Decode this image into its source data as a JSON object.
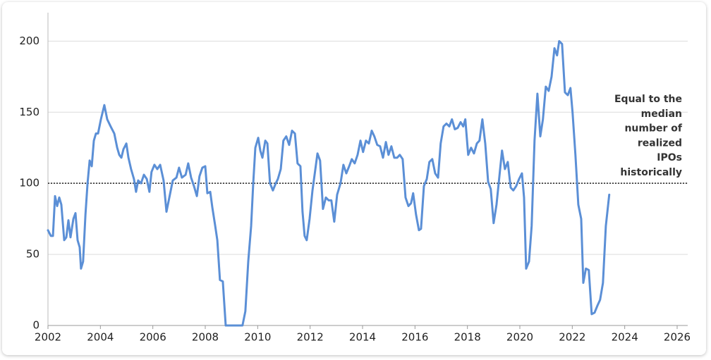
{
  "chart_data": {
    "type": "line",
    "xlim": [
      2002,
      2026
    ],
    "xticks": [
      2002,
      2004,
      2006,
      2008,
      2010,
      2012,
      2014,
      2016,
      2018,
      2020,
      2022,
      2024,
      2026
    ],
    "ylim": [
      0,
      220
    ],
    "yticks": [
      0,
      50,
      100,
      150,
      200
    ],
    "grid": true,
    "reference_line": 100,
    "annotation": [
      "Equal to the",
      "median",
      "number of",
      "realized",
      "IPOs",
      "historically"
    ],
    "series": [
      {
        "color": "#5b8fd6",
        "x": [
          2002.0,
          2002.11,
          2002.19,
          2002.27,
          2002.35,
          2002.43,
          2002.51,
          2002.62,
          2002.7,
          2002.78,
          2002.86,
          2002.97,
          2003.05,
          2003.13,
          2003.21,
          2003.26,
          2003.34,
          2003.43,
          2003.51,
          2003.59,
          2003.67,
          2003.75,
          2003.83,
          2003.91,
          2004.02,
          2004.15,
          2004.26,
          2004.39,
          2004.53,
          2004.64,
          2004.72,
          2004.8,
          2004.88,
          2004.99,
          2005.07,
          2005.17,
          2005.28,
          2005.36,
          2005.44,
          2005.55,
          2005.66,
          2005.77,
          2005.87,
          2005.95,
          2006.06,
          2006.17,
          2006.28,
          2006.41,
          2006.52,
          2006.63,
          2006.76,
          2006.9,
          2007.0,
          2007.11,
          2007.25,
          2007.35,
          2007.46,
          2007.57,
          2007.68,
          2007.78,
          2007.89,
          2008.0,
          2008.08,
          2008.19,
          2008.27,
          2008.38,
          2008.46,
          2008.56,
          2008.67,
          2008.78,
          2008.89,
          2009.42,
          2009.53,
          2009.64,
          2009.75,
          2009.83,
          2009.91,
          2010.02,
          2010.1,
          2010.18,
          2010.29,
          2010.37,
          2010.47,
          2010.58,
          2010.69,
          2010.77,
          2010.88,
          2010.98,
          2011.09,
          2011.2,
          2011.31,
          2011.42,
          2011.52,
          2011.63,
          2011.71,
          2011.79,
          2011.87,
          2011.98,
          2012.09,
          2012.2,
          2012.28,
          2012.38,
          2012.49,
          2012.6,
          2012.71,
          2012.81,
          2012.92,
          2013.03,
          2013.16,
          2013.27,
          2013.38,
          2013.49,
          2013.59,
          2013.7,
          2013.81,
          2013.92,
          2014.02,
          2014.13,
          2014.24,
          2014.35,
          2014.45,
          2014.56,
          2014.67,
          2014.78,
          2014.89,
          2014.99,
          2015.1,
          2015.21,
          2015.32,
          2015.42,
          2015.53,
          2015.64,
          2015.75,
          2015.85,
          2015.93,
          2016.04,
          2016.15,
          2016.23,
          2016.34,
          2016.45,
          2016.55,
          2016.66,
          2016.77,
          2016.88,
          2016.98,
          2017.09,
          2017.2,
          2017.31,
          2017.41,
          2017.52,
          2017.63,
          2017.74,
          2017.84,
          2017.92,
          2018.03,
          2018.14,
          2018.25,
          2018.36,
          2018.46,
          2018.57,
          2018.68,
          2018.79,
          2018.89,
          2019.0,
          2019.11,
          2019.22,
          2019.32,
          2019.43,
          2019.54,
          2019.65,
          2019.75,
          2019.86,
          2019.97,
          2020.08,
          2020.16,
          2020.24,
          2020.35,
          2020.45,
          2020.56,
          2020.67,
          2020.78,
          2020.88,
          2020.99,
          2021.1,
          2021.21,
          2021.32,
          2021.42,
          2021.5,
          2021.61,
          2021.72,
          2021.83,
          2021.93,
          2022.01,
          2022.12,
          2022.23,
          2022.34,
          2022.42,
          2022.52,
          2022.63,
          2022.74,
          2022.85,
          2022.96,
          2023.06,
          2023.17,
          2023.28,
          2023.41
        ],
        "values": [
          67,
          63,
          63,
          91,
          84,
          90,
          85,
          60,
          62,
          74,
          62,
          75,
          79,
          60,
          55,
          40,
          45,
          78,
          100,
          116,
          112,
          130,
          135,
          135,
          145,
          155,
          145,
          140,
          135,
          125,
          120,
          118,
          124,
          128,
          118,
          110,
          103,
          94,
          102,
          100,
          106,
          103,
          94,
          108,
          113,
          110,
          113,
          102,
          80,
          90,
          102,
          104,
          111,
          104,
          106,
          114,
          104,
          98,
          91,
          105,
          111,
          112,
          93,
          94,
          83,
          70,
          60,
          32,
          31,
          0,
          0,
          0,
          10,
          45,
          70,
          100,
          125,
          132,
          123,
          118,
          130,
          128,
          100,
          95,
          100,
          103,
          110,
          130,
          133,
          127,
          137,
          135,
          114,
          112,
          80,
          63,
          60,
          75,
          95,
          110,
          121,
          116,
          82,
          90,
          88,
          88,
          73,
          92,
          100,
          113,
          107,
          112,
          117,
          114,
          120,
          130,
          122,
          130,
          128,
          137,
          133,
          127,
          126,
          118,
          129,
          120,
          126,
          118,
          118,
          120,
          117,
          90,
          84,
          86,
          93,
          78,
          67,
          68,
          98,
          103,
          115,
          117,
          107,
          104,
          128,
          140,
          142,
          140,
          145,
          138,
          139,
          143,
          140,
          145,
          120,
          125,
          121,
          128,
          130,
          145,
          128,
          101,
          96,
          72,
          85,
          105,
          123,
          110,
          115,
          97,
          95,
          98,
          103,
          107,
          90,
          40,
          45,
          70,
          130,
          163,
          133,
          145,
          168,
          165,
          175,
          195,
          190,
          200,
          198,
          164,
          162,
          167,
          150,
          120,
          85,
          75,
          30,
          40,
          39,
          8,
          9,
          14,
          18,
          30,
          70,
          92
        ]
      }
    ]
  }
}
